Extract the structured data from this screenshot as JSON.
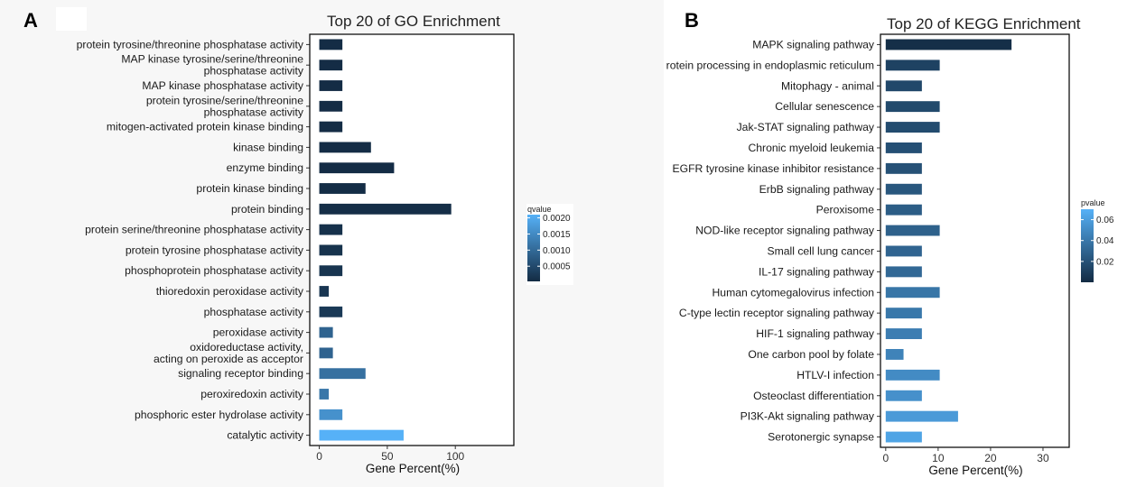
{
  "panels": [
    {
      "letter": "A",
      "chart_data": {
        "type": "bar",
        "orientation": "horizontal",
        "title": "Top 20 of GO Enrichment",
        "xlabel": "Gene Percent(%)",
        "ylabel": "",
        "xlim": [
          -7,
          143
        ],
        "xticks": [
          0,
          50,
          100
        ],
        "grid": false,
        "categories": [
          "protein tyrosine/threonine phosphatase activity",
          "MAP kinase tyrosine/serine/threonine\nphosphatase activity",
          "MAP kinase phosphatase activity",
          "protein tyrosine/serine/threonine\nphosphatase activity",
          "mitogen-activated protein kinase binding",
          "kinase binding",
          "enzyme binding",
          "protein kinase binding",
          "protein binding",
          "protein serine/threonine phosphatase activity",
          "protein tyrosine phosphatase activity",
          "phosphoprotein phosphatase activity",
          "thioredoxin peroxidase activity",
          "phosphatase activity",
          "peroxidase activity",
          "oxidoreductase activity,\nacting on peroxide as acceptor",
          "signaling receptor binding",
          "peroxiredoxin activity",
          "phosphoric ester hydrolase activity",
          "catalytic activity"
        ],
        "values": [
          17,
          17,
          17,
          17,
          17,
          38,
          55,
          34,
          97,
          17,
          17,
          17,
          7,
          17,
          10,
          10,
          34,
          7,
          17,
          62
        ],
        "color_values": [
          5e-05,
          5e-05,
          5e-05,
          5e-05,
          5e-05,
          5e-05,
          5e-05,
          6e-05,
          8e-05,
          0.00012,
          0.00015,
          0.00018,
          0.0002,
          0.00025,
          0.0009,
          0.0009,
          0.0011,
          0.0012,
          0.0016,
          0.0021
        ],
        "legend": {
          "title": "qvalue",
          "position": "right",
          "ticks": [
            "0.0020",
            "0.0015",
            "0.0010",
            "0.0005"
          ],
          "tick_values": [
            0.002,
            0.0015,
            0.001,
            0.0005
          ],
          "range": [
            3e-05,
            0.0021
          ],
          "low_color": "#132b43",
          "high_color": "#56b1f7"
        }
      }
    },
    {
      "letter": "B",
      "chart_data": {
        "type": "bar",
        "orientation": "horizontal",
        "title": "Top 20 of KEGG Enrichment",
        "xlabel": "Gene Percent(%)",
        "ylabel": "",
        "xlim": [
          -1,
          35
        ],
        "xticks": [
          0,
          10,
          20,
          30
        ],
        "grid": false,
        "categories": [
          "MAPK signaling pathway",
          "Protein processing in endoplasmic reticulum",
          "Mitophagy - animal",
          "Cellular senescence",
          "Jak-STAT signaling pathway",
          "Chronic myeloid leukemia",
          "EGFR tyrosine kinase inhibitor resistance",
          "ErbB signaling pathway",
          "Peroxisome",
          "NOD-like receptor signaling pathway",
          "Small cell lung cancer",
          "IL-17 signaling pathway",
          "Human cytomegalovirus infection",
          "C-type lectin receptor signaling pathway",
          "HIF-1 signaling pathway",
          "One carbon pool by folate",
          "HTLV-I infection",
          "Osteoclast differentiation",
          "PI3K-Akt signaling pathway",
          "Serotonergic synapse"
        ],
        "values": [
          24,
          10.3,
          6.9,
          10.3,
          10.3,
          6.9,
          6.9,
          6.9,
          6.9,
          10.3,
          6.9,
          6.9,
          10.3,
          6.9,
          6.9,
          3.4,
          10.3,
          6.9,
          13.8,
          6.9
        ],
        "color_values": [
          0.002,
          0.012,
          0.015,
          0.016,
          0.017,
          0.019,
          0.02,
          0.023,
          0.026,
          0.028,
          0.03,
          0.032,
          0.039,
          0.04,
          0.043,
          0.046,
          0.05,
          0.053,
          0.058,
          0.063
        ],
        "legend": {
          "title": "pvalue",
          "position": "right",
          "ticks": [
            "0.06",
            "0.04",
            "0.02"
          ],
          "tick_values": [
            0.06,
            0.04,
            0.02
          ],
          "range": [
            0.0,
            0.07
          ],
          "low_color": "#132b43",
          "high_color": "#56b1f7"
        }
      }
    }
  ]
}
